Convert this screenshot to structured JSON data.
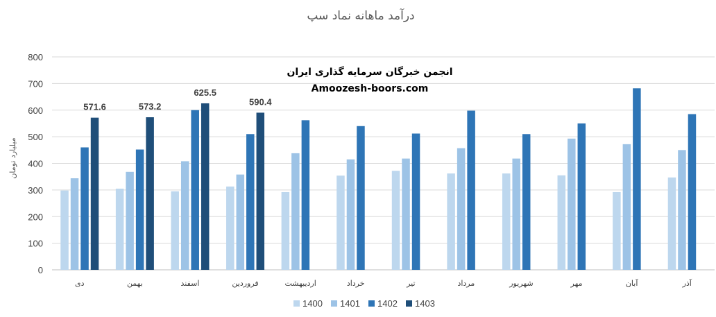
{
  "chart_data": {
    "type": "bar",
    "title": "درآمد ماهانه نماد سپ",
    "ylabel": "میلیارد تومان",
    "xlabel": "",
    "ylim": [
      0,
      800
    ],
    "yticks": [
      0,
      100,
      200,
      300,
      400,
      500,
      600,
      700,
      800
    ],
    "grid": true,
    "legend_position": "bottom",
    "categories": [
      "دی",
      "بهمن",
      "اسفند",
      "فروردین",
      "اردیبهشت",
      "خرداد",
      "تیر",
      "مرداد",
      "شهریور",
      "مهر",
      "آبان",
      "آذر"
    ],
    "series": [
      {
        "name": "1400",
        "color": "#BDD7EE",
        "values": [
          298,
          305,
          295,
          313,
          292,
          354,
          372,
          362,
          362,
          355,
          292,
          347
        ]
      },
      {
        "name": "1401",
        "color": "#9DC3E6",
        "values": [
          344,
          368,
          408,
          358,
          438,
          415,
          418,
          457,
          418,
          493,
          472,
          450
        ]
      },
      {
        "name": "1402",
        "color": "#2E75B6",
        "values": [
          460,
          452,
          600,
          510,
          562,
          540,
          512,
          598,
          510,
          550,
          682,
          585
        ]
      },
      {
        "name": "1403",
        "color": "#1F4E79",
        "values": [
          571.6,
          573.2,
          625.5,
          590.4,
          null,
          null,
          null,
          null,
          null,
          null,
          null,
          null
        ]
      }
    ],
    "data_labels": [
      "571.6",
      "573.2",
      "625.5",
      "590.4"
    ]
  },
  "watermark": {
    "line1": "انجمن خبرگان سرمایه گذاری ایران",
    "line2": "Amoozesh-boors.com"
  }
}
